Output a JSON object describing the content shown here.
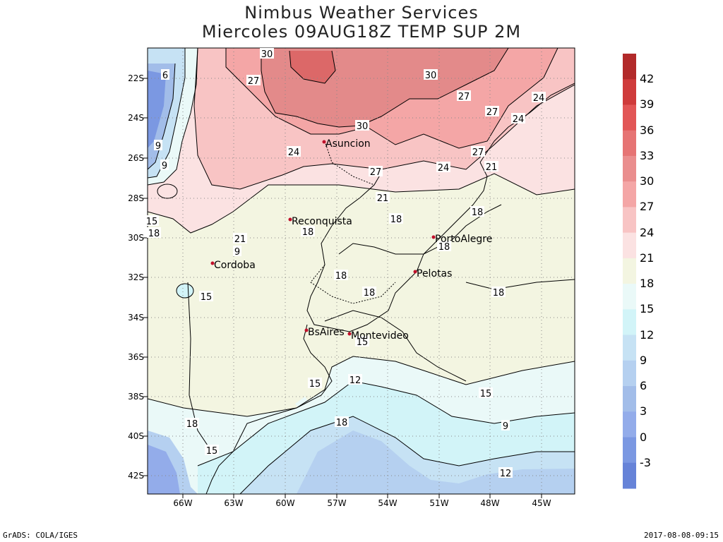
{
  "title": {
    "line1": "Nimbus Weather Services",
    "line2": "Miercoles 09AUG18Z TEMP SUP 2M"
  },
  "axes": {
    "y_ticks": [
      "22S",
      "24S",
      "26S",
      "28S",
      "30S",
      "32S",
      "34S",
      "36S",
      "38S",
      "40S",
      "42S"
    ],
    "x_ticks": [
      "66W",
      "63W",
      "60W",
      "57W",
      "54W",
      "51W",
      "48W",
      "45W"
    ]
  },
  "colorbar": {
    "labels": [
      "42",
      "39",
      "36",
      "33",
      "30",
      "27",
      "24",
      "21",
      "18",
      "15",
      "12",
      "9",
      "6",
      "3",
      "0",
      "-3"
    ],
    "colors": [
      "#b22a2a",
      "#cf3b3b",
      "#e25656",
      "#e67474",
      "#ea8e8e",
      "#f4a6a6",
      "#f8c4c4",
      "#fbe2e2",
      "#f3f5e1",
      "#eaf9f8",
      "#d2f4f8",
      "#c6e2f4",
      "#b5d0f0",
      "#a2bde9",
      "#93acea",
      "#7b98e2",
      "#6683d8"
    ]
  },
  "cities": [
    {
      "name": "Asuncion"
    },
    {
      "name": "Reconquista"
    },
    {
      "name": "Cordoba"
    },
    {
      "name": "PortoAlegre"
    },
    {
      "name": "Pelotas"
    },
    {
      "name": "BsAires"
    },
    {
      "name": "Montevideo"
    }
  ],
  "contour_labels": [
    "30",
    "27",
    "30",
    "27",
    "27",
    "24",
    "24",
    "30",
    "24",
    "27",
    "24",
    "27",
    "21",
    "21",
    "6",
    "9",
    "9",
    "15",
    "18",
    "21",
    "18",
    "18",
    "18",
    "18",
    "18",
    "18",
    "18",
    "18",
    "15",
    "15",
    "15",
    "12",
    "15",
    "18",
    "9",
    "12",
    "15",
    "9"
  ],
  "footer": {
    "left": "GrADS: COLA/IGES",
    "right": "2017-08-08-09:15"
  }
}
